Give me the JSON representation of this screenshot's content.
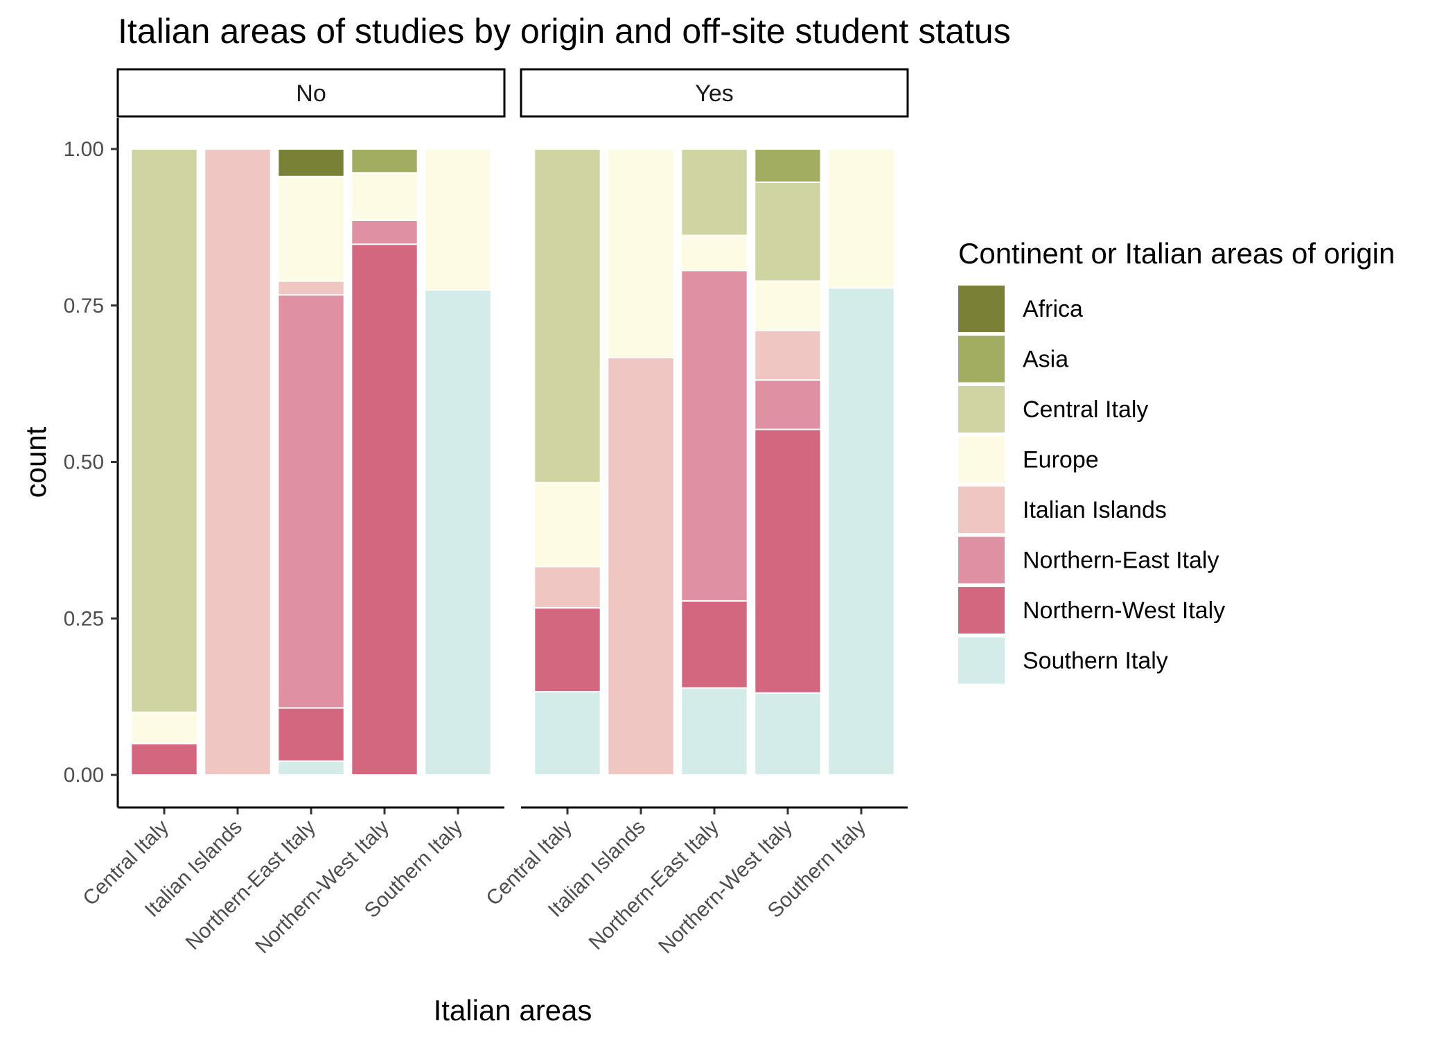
{
  "chart_data": {
    "type": "bar",
    "stacked": true,
    "title": "Italian areas of studies by origin and off-site student status",
    "xlabel": "Italian areas",
    "ylabel": "count",
    "ylim": [
      0,
      1
    ],
    "y_ticks": [
      "0.00",
      "0.25",
      "0.50",
      "0.75",
      "1.00"
    ],
    "y_tick_values": [
      0,
      0.25,
      0.5,
      0.75,
      1.0
    ],
    "categories": [
      "Central Italy",
      "Italian Islands",
      "Northern-East Italy",
      "Northern-West Italy",
      "Southern Italy"
    ],
    "legend": {
      "title": "Continent or Italian areas of origin",
      "position": "right",
      "items": [
        {
          "name": "Africa",
          "color": "#7a8136"
        },
        {
          "name": "Asia",
          "color": "#a3ad62"
        },
        {
          "name": "Central Italy",
          "color": "#d0d3a2"
        },
        {
          "name": "Europe",
          "color": "#fdfbe4"
        },
        {
          "name": "Italian Islands",
          "color": "#f0c6c3"
        },
        {
          "name": "Northern-East Italy",
          "color": "#df91a3"
        },
        {
          "name": "Northern-West Italy",
          "color": "#d46780"
        },
        {
          "name": "Southern Italy",
          "color": "#d3ece9"
        }
      ]
    },
    "facets": [
      {
        "label": "No",
        "bars": [
          {
            "category": "Central Italy",
            "segments": {
              "Southern Italy": 0,
              "Northern-West Italy": 0.05,
              "Northern-East Italy": 0,
              "Italian Islands": 0,
              "Europe": 0.05,
              "Central Italy": 0.9,
              "Asia": 0,
              "Africa": 0
            }
          },
          {
            "category": "Italian Islands",
            "segments": {
              "Southern Italy": 0,
              "Northern-West Italy": 0,
              "Northern-East Italy": 0,
              "Italian Islands": 1.0,
              "Europe": 0,
              "Central Italy": 0,
              "Asia": 0,
              "Africa": 0
            }
          },
          {
            "category": "Northern-East Italy",
            "segments": {
              "Southern Italy": 0.022,
              "Northern-West Italy": 0.085,
              "Northern-East Italy": 0.66,
              "Italian Islands": 0.022,
              "Europe": 0.167,
              "Central Italy": 0,
              "Asia": 0,
              "Africa": 0.044
            }
          },
          {
            "category": "Northern-West Italy",
            "segments": {
              "Southern Italy": 0,
              "Northern-West Italy": 0.848,
              "Northern-East Italy": 0.038,
              "Italian Islands": 0,
              "Europe": 0.076,
              "Central Italy": 0,
              "Asia": 0.038,
              "Africa": 0
            }
          },
          {
            "category": "Southern Italy",
            "segments": {
              "Southern Italy": 0.775,
              "Northern-West Italy": 0,
              "Northern-East Italy": 0,
              "Italian Islands": 0,
              "Europe": 0.225,
              "Central Italy": 0,
              "Asia": 0,
              "Africa": 0
            }
          }
        ]
      },
      {
        "label": "Yes",
        "bars": [
          {
            "category": "Central Italy",
            "segments": {
              "Southern Italy": 0.133,
              "Northern-West Italy": 0.134,
              "Northern-East Italy": 0,
              "Italian Islands": 0.066,
              "Europe": 0.134,
              "Central Italy": 0.533,
              "Asia": 0,
              "Africa": 0
            }
          },
          {
            "category": "Italian Islands",
            "segments": {
              "Southern Italy": 0,
              "Northern-West Italy": 0,
              "Northern-East Italy": 0,
              "Italian Islands": 0.667,
              "Europe": 0.333,
              "Central Italy": 0,
              "Asia": 0,
              "Africa": 0
            }
          },
          {
            "category": "Northern-East Italy",
            "segments": {
              "Southern Italy": 0.139,
              "Northern-West Italy": 0.139,
              "Northern-East Italy": 0.528,
              "Italian Islands": 0,
              "Europe": 0.056,
              "Central Italy": 0.138,
              "Asia": 0,
              "Africa": 0
            }
          },
          {
            "category": "Northern-West Italy",
            "segments": {
              "Southern Italy": 0.131,
              "Northern-West Italy": 0.421,
              "Northern-East Italy": 0.079,
              "Italian Islands": 0.079,
              "Europe": 0.079,
              "Central Italy": 0.158,
              "Asia": 0.053,
              "Africa": 0
            }
          },
          {
            "category": "Southern Italy",
            "segments": {
              "Southern Italy": 0.778,
              "Northern-West Italy": 0,
              "Northern-East Italy": 0,
              "Italian Islands": 0,
              "Europe": 0.222,
              "Central Italy": 0,
              "Asia": 0,
              "Africa": 0
            }
          }
        ]
      }
    ]
  }
}
